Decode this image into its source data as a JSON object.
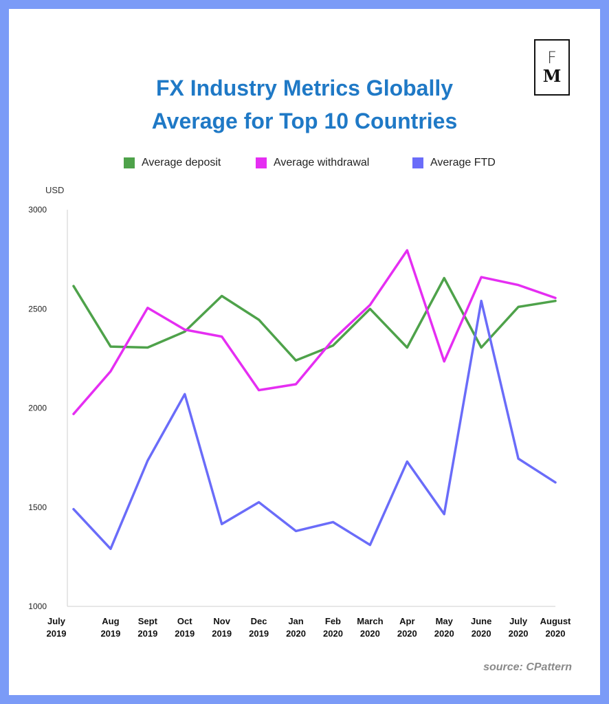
{
  "title_line1": "FX Industry Metrics Globally",
  "title_line2": "Average for Top 10 Countries",
  "logo": {
    "top": "F",
    "bottom": "M"
  },
  "unit_label": "USD",
  "source": "source: CPattern",
  "chart_data": {
    "type": "line",
    "title": "FX Industry Metrics Globally Average for Top 10 Countries",
    "ylabel": "USD",
    "xlabel": "",
    "ylim": [
      1000,
      3000
    ],
    "yticks": [
      1000,
      1500,
      2000,
      2500,
      3000
    ],
    "legend_position": "top",
    "grid": false,
    "categories": [
      [
        "July",
        "2019"
      ],
      [
        "Aug",
        "2019"
      ],
      [
        "Sept",
        "2019"
      ],
      [
        "Oct",
        "2019"
      ],
      [
        "Nov",
        "2019"
      ],
      [
        "Dec",
        "2019"
      ],
      [
        "Jan",
        "2020"
      ],
      [
        "Feb",
        "2020"
      ],
      [
        "March",
        "2020"
      ],
      [
        "Apr",
        "2020"
      ],
      [
        "May",
        "2020"
      ],
      [
        "June",
        "2020"
      ],
      [
        "July",
        "2020"
      ],
      [
        "August",
        "2020"
      ]
    ],
    "series": [
      {
        "name": "Average deposit",
        "color": "#4ea24a",
        "values": [
          2615,
          2310,
          2305,
          2385,
          2565,
          2445,
          2240,
          2315,
          2500,
          2305,
          2655,
          2305,
          2510,
          2540
        ]
      },
      {
        "name": "Average withdrawal",
        "color": "#e52ef2",
        "values": [
          1970,
          2185,
          2505,
          2395,
          2360,
          2090,
          2120,
          2345,
          2520,
          2795,
          2235,
          2660,
          2620,
          2555
        ]
      },
      {
        "name": "Average FTD",
        "color": "#6a6cf9",
        "values": [
          1490,
          1290,
          1735,
          2070,
          1415,
          1525,
          1380,
          1425,
          1310,
          1730,
          1465,
          2540,
          1745,
          1625
        ]
      }
    ]
  }
}
